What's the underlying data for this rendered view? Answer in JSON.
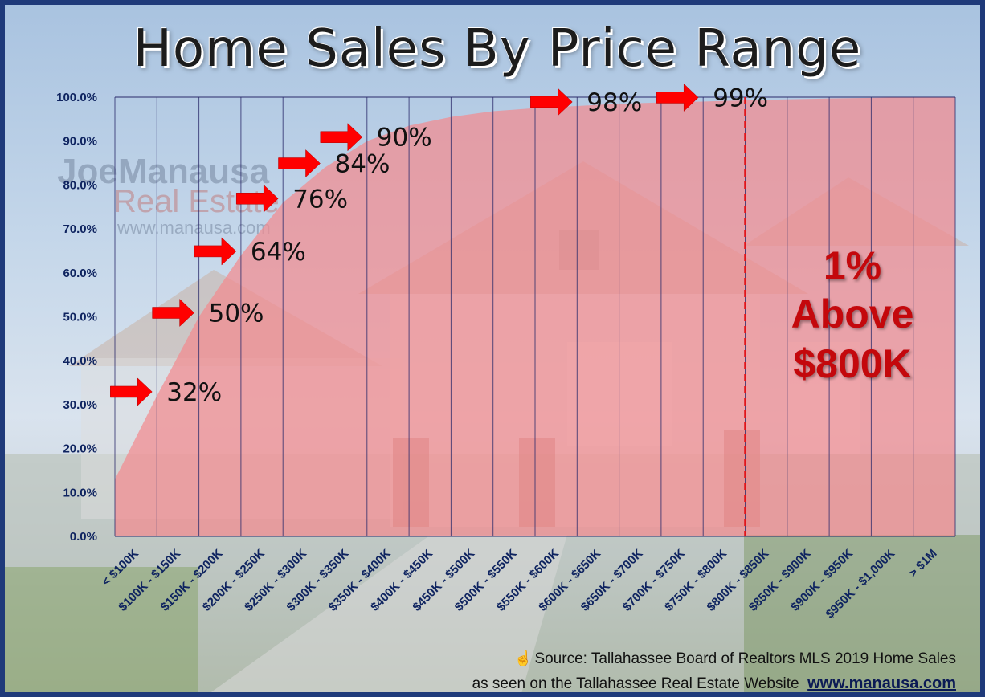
{
  "title": "Home Sales By Price Range",
  "annotation": {
    "line1": "1%",
    "line2": "Above",
    "line3": "$800K"
  },
  "source": {
    "icon": "hand-pointer-icon",
    "line1": "Source: Tallahassee Board of Realtors MLS 2019 Home Sales",
    "line2_prefix": "as seen on the Tallahassee Real Estate Website",
    "url": "www.manausa.com"
  },
  "colors": {
    "area_fill": "#f28a8f",
    "grid": "#2a2a6a",
    "axis_text": "#0f2460",
    "arrow": "#ff0000",
    "annotation": "#c4080c",
    "frame": "#1f3a7a"
  },
  "chart_data": {
    "type": "area",
    "title": "Home Sales By Price Range",
    "categories": [
      "< $100K",
      "$100K - $150K",
      "$150K - $200K",
      "$200K - $250K",
      "$250K - $300K",
      "$300K - $350K",
      "$350K - $400K",
      "$400K - $450K",
      "$450K - $500K",
      "$500K - $550K",
      "$550K - $600K",
      "$600K - $650K",
      "$650K - $700K",
      "$700K - $750K",
      "$750K - $800K",
      "$800K - $850K",
      "$850K - $900K",
      "$900K - $950K",
      "$950K - $1,000K",
      "> $1M"
    ],
    "values": [
      13,
      32,
      50,
      64,
      76,
      84,
      90,
      93.5,
      95.5,
      96.8,
      97.5,
      98,
      98.5,
      98.8,
      99,
      99.3,
      99.5,
      99.7,
      99.85,
      100
    ],
    "y_ticks": [
      "0.0%",
      "10.0%",
      "20.0%",
      "30.0%",
      "40.0%",
      "50.0%",
      "60.0%",
      "70.0%",
      "80.0%",
      "90.0%",
      "100.0%"
    ],
    "ylim": [
      0,
      100
    ],
    "grid": "vertical",
    "legend": "none",
    "callouts": [
      {
        "label": "32%",
        "value": 32,
        "category_index": 1
      },
      {
        "label": "50%",
        "value": 50,
        "category_index": 2
      },
      {
        "label": "64%",
        "value": 64,
        "category_index": 3
      },
      {
        "label": "76%",
        "value": 76,
        "category_index": 4
      },
      {
        "label": "84%",
        "value": 84,
        "category_index": 5
      },
      {
        "label": "90%",
        "value": 90,
        "category_index": 6
      },
      {
        "label": "98%",
        "value": 98,
        "category_index": 11
      },
      {
        "label": "99%",
        "value": 99,
        "category_index": 14
      }
    ],
    "marker_line_category_index": 14
  }
}
